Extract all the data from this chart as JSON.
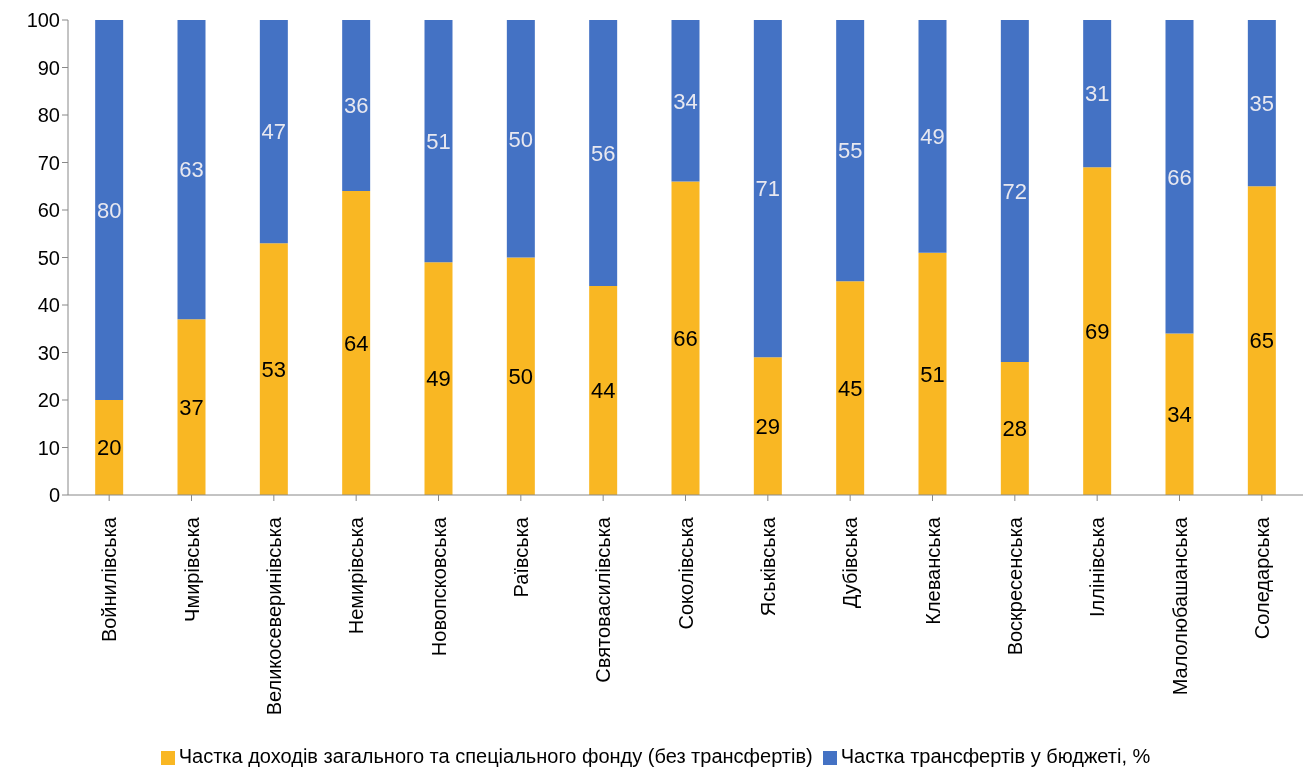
{
  "chart_data": {
    "type": "bar",
    "stacked": true,
    "categories": [
      "Войнилівська",
      "Чмирівська",
      "Великосеверинівська",
      "Немирівська",
      "Новопсковська",
      "Раївська",
      "Святовасилівська",
      "Соколівська",
      "Яськівська",
      "Дубівська",
      "Клеванська",
      "Воскресенська",
      "Іллінівська",
      "Малолюбашанська",
      "Соледарська"
    ],
    "series": [
      {
        "name": "Частка доходів загального та спеціального фонду (без трансфертів)",
        "color": "#f9b723",
        "values": [
          20,
          37,
          53,
          64,
          49,
          50,
          44,
          66,
          29,
          45,
          51,
          28,
          69,
          34,
          65
        ]
      },
      {
        "name": "Частка трансфертів у бюджеті, %",
        "color": "#4472c4",
        "values": [
          80,
          63,
          47,
          36,
          51,
          50,
          56,
          34,
          71,
          55,
          49,
          72,
          31,
          66,
          35
        ]
      }
    ],
    "ylim": [
      0,
      100
    ],
    "yticks": [
      0,
      10,
      20,
      30,
      40,
      50,
      60,
      70,
      80,
      90,
      100
    ],
    "grid": false,
    "legend": "bottom",
    "data_labels": true
  }
}
